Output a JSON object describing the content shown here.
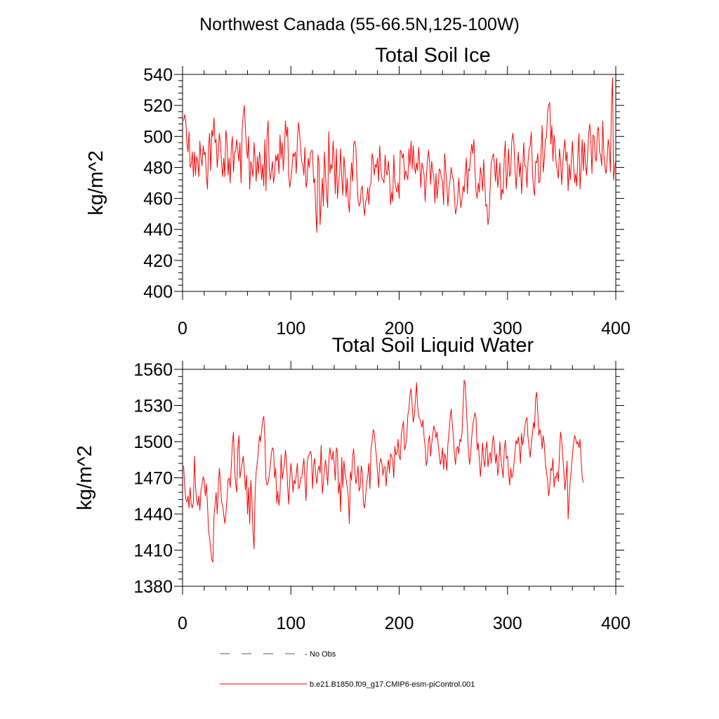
{
  "page": {
    "suptitle": "Northwest Canada (55-66.5N,125-100W)"
  },
  "legend": {
    "entries": [
      {
        "label": "No Obs",
        "style": "dashed",
        "color": "#4d5a8a"
      },
      {
        "label": "b.e21.B1850.f09_g17.CMIP6-esm-piControl.001",
        "style": "solid",
        "color": "#ff0000"
      }
    ]
  },
  "chart_data": [
    {
      "type": "line",
      "title": "Total Soil Ice",
      "xlabel": "",
      "ylabel": "kg/m^2",
      "xlim": [
        0,
        400
      ],
      "ylim": [
        400,
        540
      ],
      "xticks": [
        0,
        100,
        200,
        300,
        400
      ],
      "yticks": [
        400,
        420,
        440,
        460,
        480,
        500,
        520,
        540
      ],
      "xtick_labels": [
        "0",
        "100",
        "200",
        "300",
        "400"
      ],
      "ytick_labels": [
        "400",
        "420",
        "440",
        "460",
        "480",
        "500",
        "520",
        "540"
      ],
      "grid": false,
      "series": [
        {
          "name": "b.e21.B1850.f09_g17.CMIP6-esm-piControl.001",
          "color": "#ff0000",
          "x_start": 1,
          "x_step": 1,
          "y": [
            510,
            514,
            510,
            496,
            490,
            503,
            480,
            482,
            490,
            474,
            490,
            475,
            487,
            484,
            474,
            497,
            486,
            481,
            494,
            488,
            490,
            475,
            466,
            493,
            502,
            478,
            504,
            500,
            512,
            496,
            498,
            480,
            490,
            502,
            496,
            483,
            474,
            486,
            474,
            504,
            497,
            475,
            486,
            470,
            493,
            500,
            477,
            490,
            490,
            498,
            491,
            484,
            496,
            470,
            504,
            514,
            520,
            506,
            492,
            486,
            500,
            466,
            484,
            480,
            474,
            496,
            486,
            471,
            487,
            476,
            490,
            484,
            472,
            482,
            468,
            498,
            465,
            500,
            510,
            480,
            472,
            478,
            484,
            470,
            476,
            488,
            484,
            489,
            476,
            501,
            486,
            496,
            478,
            491,
            510,
            500,
            506,
            475,
            467,
            472,
            479,
            489,
            487,
            490,
            476,
            497,
            509,
            502,
            493,
            484,
            482,
            475,
            493,
            467,
            471,
            486,
            480,
            489,
            491,
            491,
            470,
            473,
            451,
            438,
            488,
            483,
            443,
            458,
            473,
            455,
            490,
            475,
            462,
            454,
            503,
            476,
            482,
            479,
            497,
            485,
            463,
            492,
            460,
            470,
            476,
            492,
            473,
            462,
            487,
            479,
            461,
            473,
            458,
            451,
            470,
            483,
            471,
            495,
            497,
            493,
            474,
            459,
            455,
            457,
            466,
            468,
            456,
            449,
            458,
            460,
            467,
            456,
            468,
            470,
            489,
            485,
            475,
            482,
            480,
            486,
            471,
            494,
            480,
            473,
            472,
            470,
            488,
            477,
            475,
            484,
            476,
            456,
            464,
            458,
            488,
            471,
            467,
            464,
            470,
            460,
            491,
            490,
            486,
            489,
            472,
            478,
            475,
            472,
            492,
            481,
            497,
            479,
            494,
            481,
            476,
            483,
            478,
            493,
            482,
            467,
            483,
            480,
            475,
            458,
            472,
            484,
            491,
            484,
            469,
            484,
            478,
            474,
            457,
            476,
            460,
            468,
            479,
            478,
            473,
            471,
            456,
            489,
            478,
            469,
            455,
            466,
            472,
            480,
            475,
            472,
            462,
            450,
            453,
            459,
            473,
            462,
            454,
            460,
            468,
            464,
            476,
            486,
            463,
            479,
            478,
            488,
            495,
            489,
            498,
            478,
            464,
            460,
            470,
            464,
            480,
            475,
            465,
            485,
            470,
            455,
            456,
            443,
            448,
            467,
            483,
            486,
            489,
            481,
            471,
            486,
            467,
            474,
            483,
            459,
            466,
            463,
            486,
            497,
            466,
            477,
            492,
            474,
            477,
            497,
            502,
            495,
            478,
            466,
            480,
            490,
            474,
            483,
            463,
            477,
            496,
            481,
            481,
            467,
            484,
            492,
            494,
            503,
            480,
            466,
            462,
            484,
            483,
            489,
            470,
            471,
            490,
            507,
            477,
            485,
            498,
            499,
            515,
            520,
            522,
            495,
            507,
            484,
            501,
            493,
            482,
            478,
            473,
            492,
            485,
            469,
            482,
            491,
            498,
            484,
            490,
            465,
            482,
            472,
            484,
            497,
            482,
            470,
            476,
            468,
            488,
            502,
            466,
            480,
            498,
            478,
            496,
            482,
            475,
            488,
            502,
            508,
            497,
            476,
            501,
            500,
            486,
            484,
            504,
            506,
            490,
            488,
            481,
            510,
            488,
            480,
            476,
            485,
            498,
            493,
            477,
            520,
            538,
            472,
            480,
            485
          ]
        }
      ]
    },
    {
      "type": "line",
      "title": "Total Soil Liquid Water",
      "xlabel": "",
      "ylabel": "kg/m^2",
      "xlim": [
        0,
        400
      ],
      "ylim": [
        1380,
        1560
      ],
      "xticks": [
        0,
        100,
        200,
        300,
        400
      ],
      "yticks": [
        1380,
        1410,
        1440,
        1470,
        1500,
        1530,
        1560
      ],
      "xtick_labels": [
        "0",
        "100",
        "200",
        "300",
        "400"
      ],
      "ytick_labels": [
        "1380",
        "1410",
        "1440",
        "1470",
        "1500",
        "1530",
        "1560"
      ],
      "grid": false,
      "series": [
        {
          "name": "b.e21.B1850.f09_g17.CMIP6-esm-piControl.001",
          "color": "#ff0000",
          "x_start": 1,
          "x_step": 1,
          "y": [
            1480,
            1462,
            1452,
            1450,
            1455,
            1445,
            1462,
            1448,
            1445,
            1450,
            1488,
            1462,
            1452,
            1447,
            1455,
            1443,
            1460,
            1464,
            1471,
            1468,
            1455,
            1465,
            1448,
            1426,
            1420,
            1411,
            1402,
            1400,
            1438,
            1448,
            1458,
            1440,
            1462,
            1478,
            1465,
            1450,
            1447,
            1440,
            1432,
            1440,
            1452,
            1468,
            1470,
            1462,
            1480,
            1498,
            1508,
            1478,
            1465,
            1458,
            1494,
            1505,
            1470,
            1476,
            1482,
            1488,
            1476,
            1460,
            1472,
            1440,
            1462,
            1432,
            1468,
            1452,
            1426,
            1411,
            1458,
            1475,
            1483,
            1492,
            1505,
            1500,
            1510,
            1518,
            1521,
            1503,
            1469,
            1464,
            1466,
            1472,
            1480,
            1490,
            1495,
            1493,
            1470,
            1478,
            1449,
            1459,
            1447,
            1457,
            1489,
            1469,
            1475,
            1481,
            1493,
            1483,
            1463,
            1448,
            1468,
            1482,
            1473,
            1458,
            1468,
            1465,
            1473,
            1482,
            1461,
            1462,
            1470,
            1470,
            1478,
            1486,
            1468,
            1451,
            1481,
            1488,
            1489,
            1492,
            1489,
            1461,
            1481,
            1486,
            1472,
            1465,
            1476,
            1480,
            1474,
            1497,
            1457,
            1466,
            1477,
            1485,
            1476,
            1464,
            1484,
            1495,
            1488,
            1485,
            1492,
            1482,
            1468,
            1495,
            1491,
            1457,
            1466,
            1442,
            1487,
            1462,
            1484,
            1474,
            1469,
            1462,
            1454,
            1432,
            1475,
            1468,
            1488,
            1494,
            1476,
            1465,
            1470,
            1480,
            1459,
            1462,
            1480,
            1474,
            1448,
            1445,
            1454,
            1466,
            1472,
            1482,
            1461,
            1494,
            1500,
            1510,
            1508,
            1496,
            1488,
            1474,
            1462,
            1482,
            1486,
            1482,
            1472,
            1479,
            1479,
            1463,
            1478,
            1485,
            1474,
            1490,
            1488,
            1484,
            1470,
            1496,
            1489,
            1491,
            1502,
            1488,
            1485,
            1506,
            1512,
            1517,
            1493,
            1497,
            1503,
            1522,
            1527,
            1539,
            1544,
            1530,
            1516,
            1522,
            1534,
            1549,
            1530,
            1521,
            1519,
            1516,
            1512,
            1518,
            1504,
            1496,
            1480,
            1485,
            1500,
            1505,
            1488,
            1498,
            1506,
            1513,
            1510,
            1503,
            1508,
            1498,
            1489,
            1481,
            1486,
            1495,
            1477,
            1490,
            1486,
            1476,
            1498,
            1507,
            1519,
            1527,
            1515,
            1505,
            1489,
            1481,
            1494,
            1496,
            1490,
            1502,
            1500,
            1507,
            1528,
            1551,
            1548,
            1528,
            1511,
            1491,
            1481,
            1490,
            1504,
            1514,
            1519,
            1524,
            1519,
            1493,
            1499,
            1486,
            1471,
            1483,
            1499,
            1485,
            1479,
            1494,
            1500,
            1479,
            1488,
            1491,
            1482,
            1498,
            1505,
            1495,
            1482,
            1490,
            1472,
            1480,
            1500,
            1486,
            1478,
            1470,
            1493,
            1501,
            1486,
            1488,
            1474,
            1464,
            1478,
            1470,
            1473,
            1482,
            1492,
            1501,
            1498,
            1504,
            1496,
            1482,
            1507,
            1497,
            1503,
            1512,
            1518,
            1520,
            1503,
            1495,
            1487,
            1498,
            1506,
            1516,
            1511,
            1536,
            1541,
            1524,
            1505,
            1510,
            1506,
            1494,
            1505,
            1498,
            1482,
            1475,
            1468,
            1455,
            1462,
            1478,
            1476,
            1486,
            1462,
            1471,
            1470,
            1475,
            1467,
            1490,
            1508,
            1502,
            1488,
            1476,
            1460,
            1470,
            1484,
            1436,
            1454,
            1468,
            1478,
            1490,
            1498,
            1505,
            1502,
            1498,
            1500,
            1495,
            1502,
            1485,
            1470,
            1466
          ]
        }
      ]
    }
  ]
}
